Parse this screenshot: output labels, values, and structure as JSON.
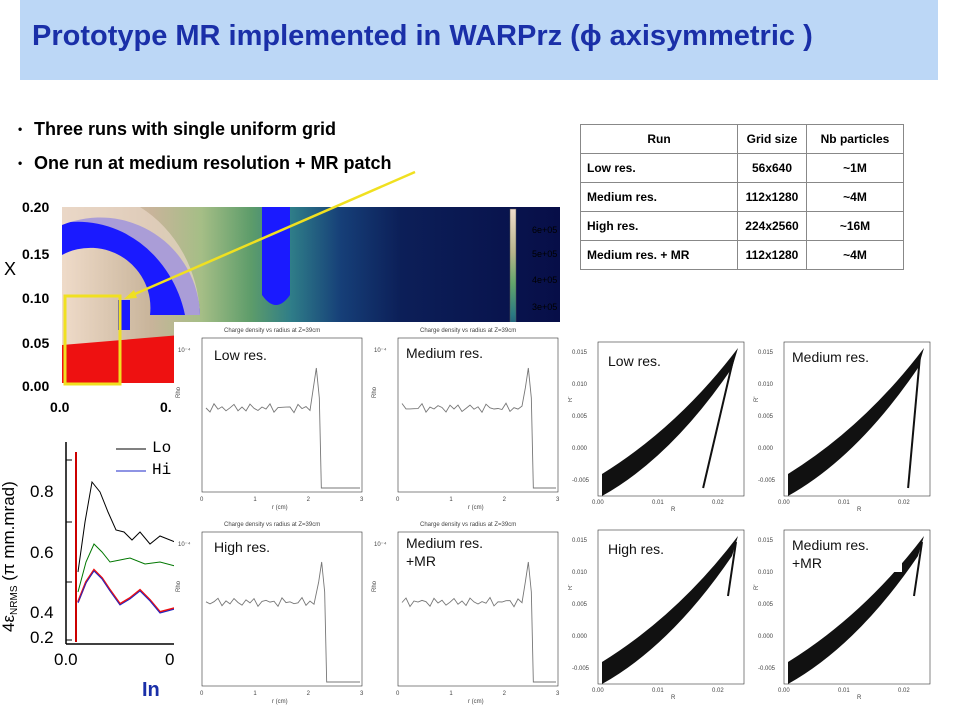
{
  "title": "Prototype MR implemented in WARPrz (ϕ axisymmetric )",
  "bullets": [
    "Three runs with single uniform grid",
    "One run at medium resolution + MR patch"
  ],
  "table": {
    "headers": [
      "Run",
      "Grid size",
      "Nb particles"
    ],
    "rows": [
      [
        "Low res.",
        "56x640",
        "~1M"
      ],
      [
        "Medium res.",
        "112x1280",
        "~4M"
      ],
      [
        "High res.",
        "224x2560",
        "~16M"
      ],
      [
        "Medium res. + MR",
        "112x1280",
        "~4M"
      ]
    ]
  },
  "field_plot": {
    "y_axis_label": "X",
    "y_ticks": [
      "0.20",
      "0.15",
      "0.10",
      "0.05",
      "0.00"
    ],
    "x_ticks": [
      "0.0",
      "0."
    ],
    "colorbar_ticks": [
      "6e+05",
      "5e+05",
      "4e+05",
      "3e+05"
    ]
  },
  "emittance_plot": {
    "y_ticks": [
      "0.8",
      "0.6",
      "0.4",
      "0.2"
    ],
    "x_ticks": [
      "0.0",
      "0"
    ],
    "legend": [
      "Lo",
      "Hi"
    ],
    "legend_colors": [
      "#000000",
      "#1c28c8"
    ],
    "bottom_text": "In"
  },
  "density_plots": {
    "panel_title": "Charge density vs radius at Z=39cm",
    "x_label": "r (cm)",
    "y_label": "Rho",
    "scale": "10⁻⁴",
    "x_ticks": [
      "0",
      "1",
      "2",
      "3"
    ],
    "labels": [
      "Low res.",
      "Medium res.",
      "High res.",
      "Medium res. +MR"
    ]
  },
  "phase_plots": {
    "x_label": "R",
    "y_label": "R'",
    "x_ticks": [
      "0.00",
      "0.01",
      "0.02"
    ],
    "y_ticks": [
      "0.015",
      "0.010",
      "0.005",
      "0.000",
      "-0.005"
    ],
    "labels": [
      "Low res.",
      "Medium res.",
      "High res.",
      "Medium res. +MR"
    ]
  }
}
